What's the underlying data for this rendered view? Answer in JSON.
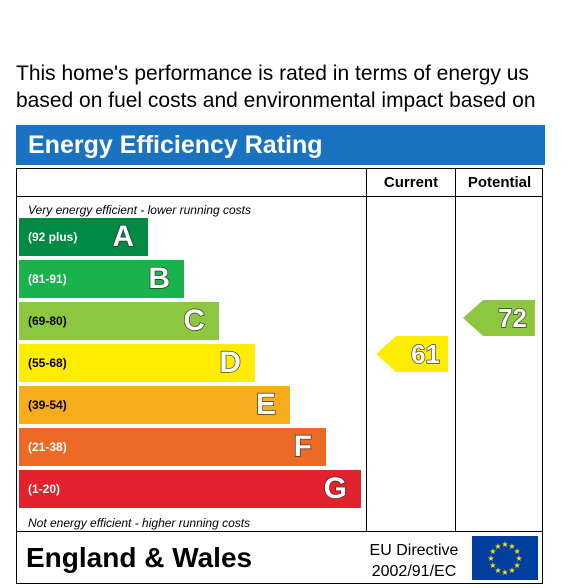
{
  "intro": {
    "line1": "This home's performance is rated in terms of energy us",
    "line2": "based on fuel costs and environmental impact based on"
  },
  "title": "Energy Efficiency Rating",
  "columns": {
    "current": "Current",
    "potential": "Potential"
  },
  "captions": {
    "top": "Very energy efficient - lower running costs",
    "bottom": "Not energy efficient - higher running costs"
  },
  "chart_data": {
    "type": "bar",
    "title": "Energy Efficiency Rating",
    "bands": [
      {
        "range": "(92 plus)",
        "letter": "A",
        "color": "#008a43"
      },
      {
        "range": "(81-91)",
        "letter": "B",
        "color": "#19b24b"
      },
      {
        "range": "(69-80)",
        "letter": "C",
        "color": "#8dc63f"
      },
      {
        "range": "(55-68)",
        "letter": "D",
        "color": "#ffec00"
      },
      {
        "range": "(39-54)",
        "letter": "E",
        "color": "#f7ac1c"
      },
      {
        "range": "(21-38)",
        "letter": "F",
        "color": "#ee6a24"
      },
      {
        "range": "(1-20)",
        "letter": "G",
        "color": "#e2222d"
      }
    ],
    "current": {
      "value": "61",
      "band": "D",
      "color": "#ffec00"
    },
    "potential": {
      "value": "72",
      "band": "C",
      "color": "#8dc63f"
    }
  },
  "footer": {
    "country": "England & Wales",
    "directive_line1": "EU Directive",
    "directive_line2": "2002/91/EC",
    "flag_icon": "eu-flag-icon"
  }
}
